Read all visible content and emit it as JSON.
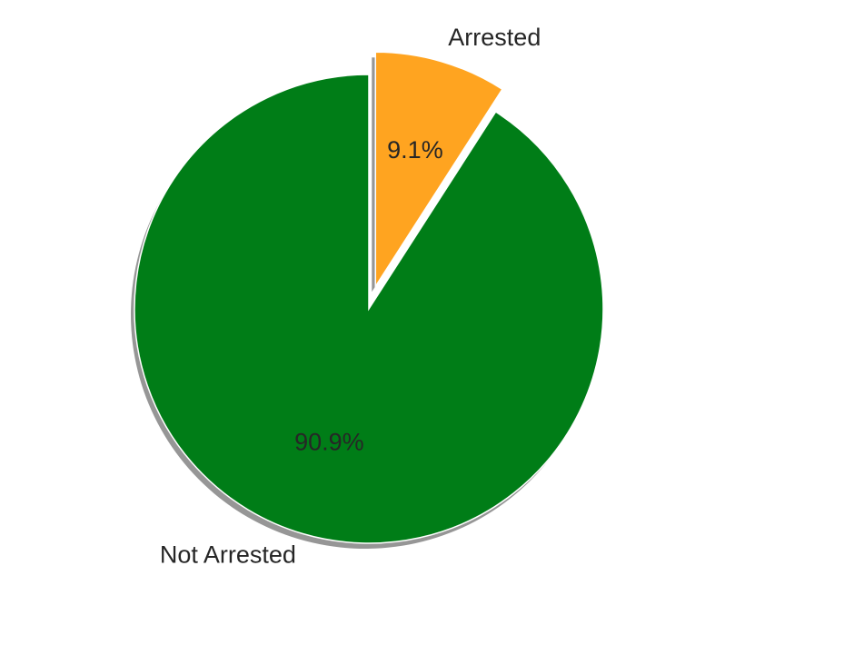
{
  "chart_data": {
    "type": "pie",
    "title": "",
    "slices": [
      {
        "label": "Not Arrested",
        "value": 90.9,
        "pct_text": "90.9%",
        "color": "#007d17",
        "explode": false
      },
      {
        "label": "Arrested",
        "value": 9.1,
        "pct_text": "9.1%",
        "color": "#ffa420",
        "explode": true
      }
    ],
    "start_angle": "top (90°), counter-clockwise",
    "shadow": true,
    "legend": "none"
  }
}
